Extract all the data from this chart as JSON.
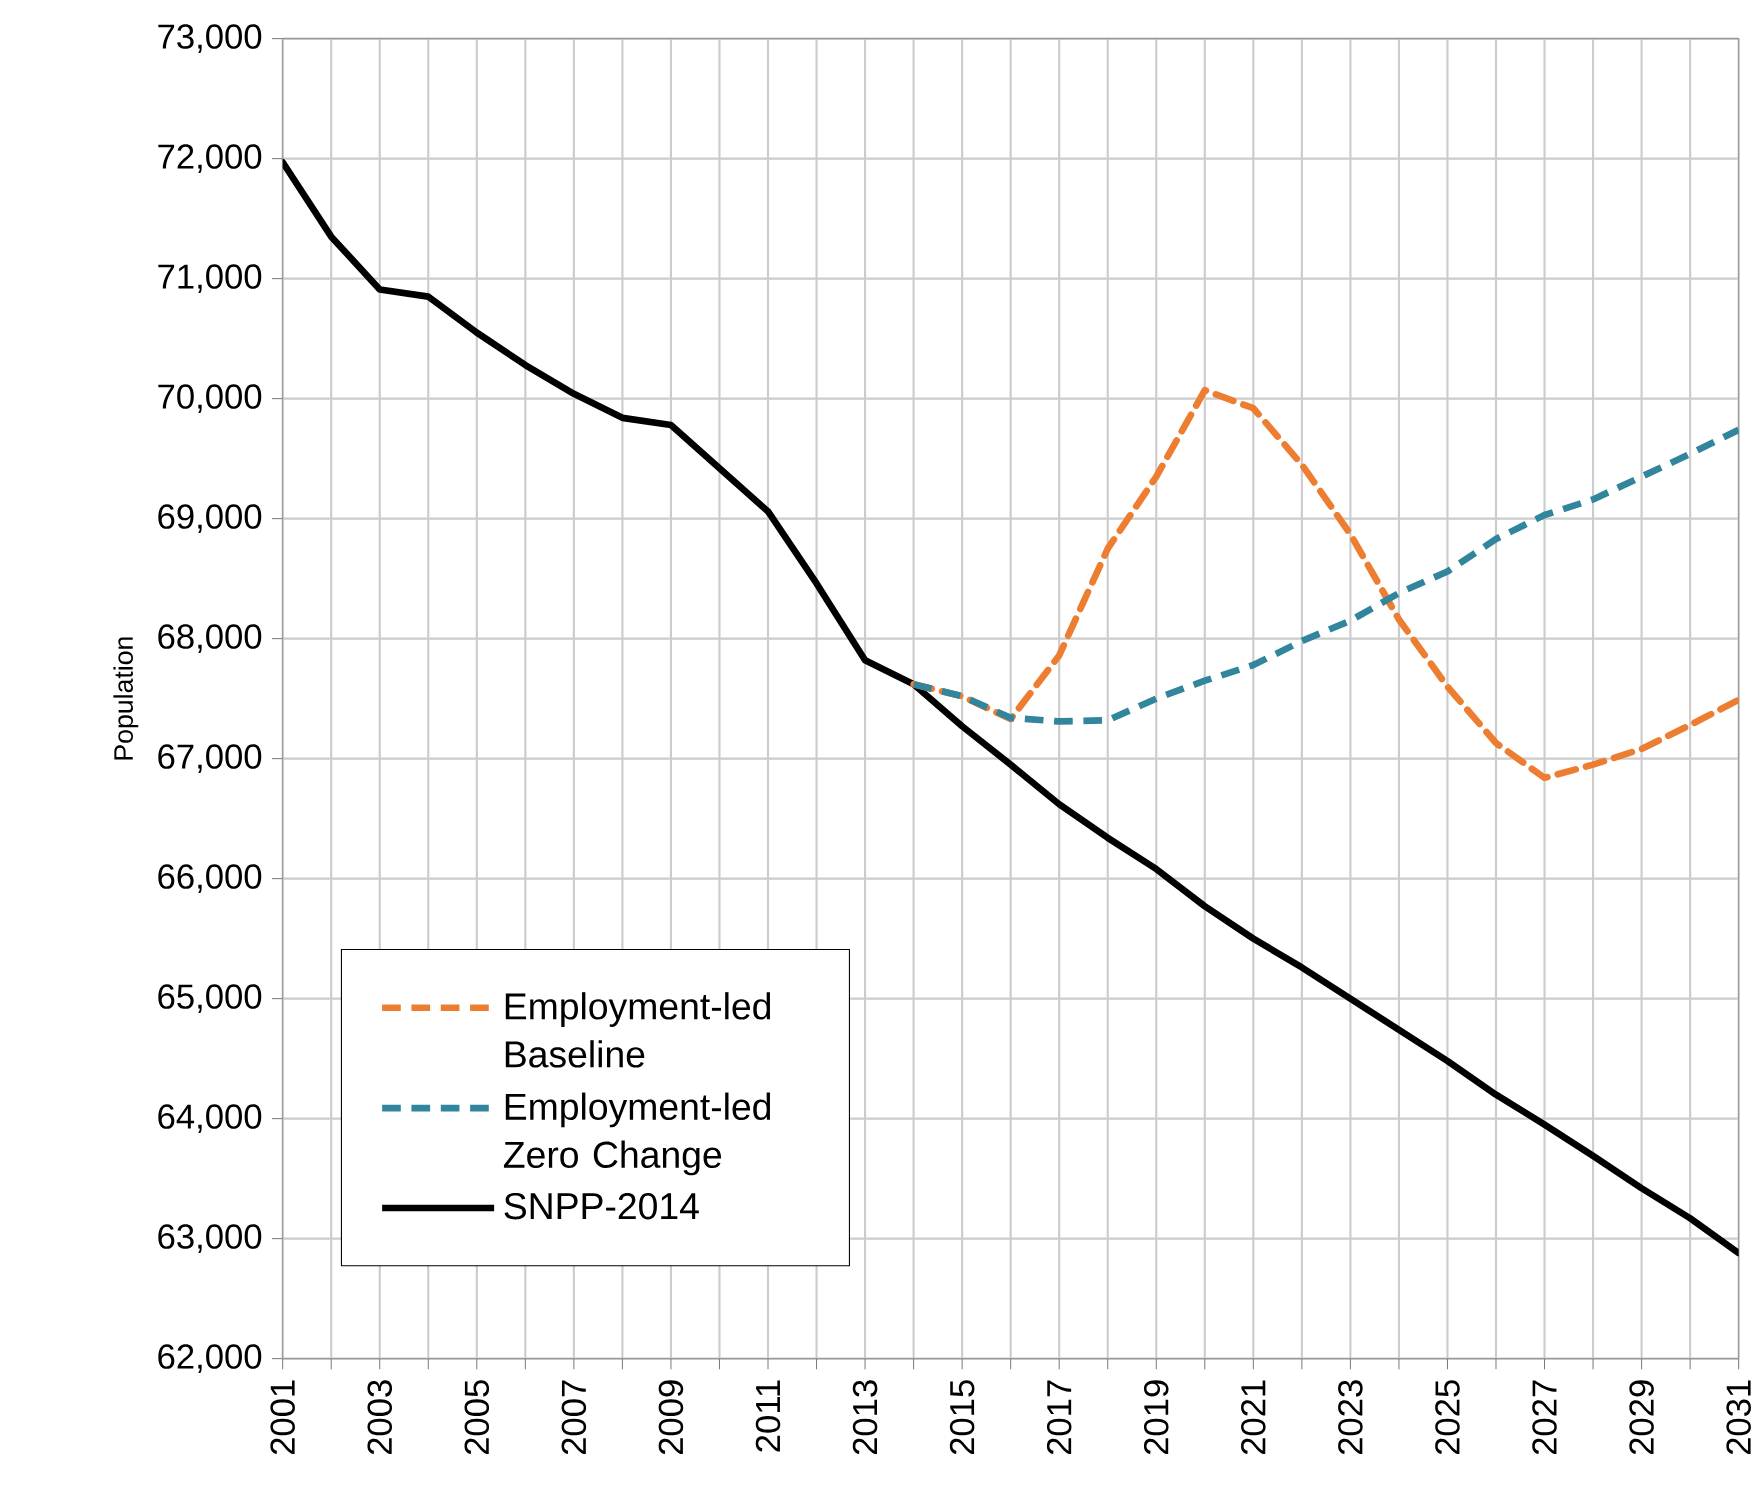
{
  "chart_data": {
    "type": "line",
    "ylabel": "Population",
    "x": [
      2001,
      2002,
      2003,
      2004,
      2005,
      2006,
      2007,
      2008,
      2009,
      2010,
      2011,
      2012,
      2013,
      2014,
      2015,
      2016,
      2017,
      2018,
      2019,
      2020,
      2021,
      2022,
      2023,
      2024,
      2025,
      2026,
      2027,
      2028,
      2029,
      2030,
      2031
    ],
    "series": [
      {
        "name": "Employment-led Baseline",
        "color": "#ed7d31",
        "line_style": "dashed",
        "values": [
          null,
          null,
          null,
          null,
          null,
          null,
          null,
          null,
          null,
          null,
          null,
          null,
          null,
          67620,
          67520,
          67330,
          67860,
          68750,
          69350,
          70070,
          69920,
          69450,
          68870,
          68160,
          67600,
          67130,
          66840,
          66950,
          67080,
          67280,
          67490
        ]
      },
      {
        "name": "Employment-led Zero Change",
        "color": "#31859c",
        "line_style": "dashed",
        "values": [
          null,
          null,
          null,
          null,
          null,
          null,
          null,
          null,
          null,
          null,
          null,
          null,
          null,
          67620,
          67520,
          67340,
          67310,
          67320,
          67500,
          67650,
          67780,
          67980,
          68150,
          68380,
          68560,
          68830,
          69030,
          69160,
          69350,
          69540,
          69740
        ]
      },
      {
        "name": "SNPP-2014",
        "color": "#000000",
        "line_style": "solid",
        "values": [
          71970,
          71350,
          70910,
          70850,
          70550,
          70280,
          70040,
          69840,
          69780,
          69420,
          69060,
          68460,
          67820,
          67620,
          67270,
          66950,
          66620,
          66340,
          66080,
          65770,
          65500,
          65260,
          65000,
          64740,
          64480,
          64200,
          63950,
          63690,
          63420,
          63170,
          62880
        ]
      }
    ],
    "xlim": [
      2001,
      2031
    ],
    "xticks": [
      2001,
      {
        "value": 2002,
        "label": null
      },
      2003,
      {
        "value": 2004,
        "label": null
      },
      2005,
      {
        "value": 2006,
        "label": null
      },
      2007,
      {
        "value": 2008,
        "label": null
      },
      2009,
      {
        "value": 2010,
        "label": null
      },
      2011,
      {
        "value": 2012,
        "label": null
      },
      2013,
      {
        "value": 2014,
        "label": null
      },
      2015,
      {
        "value": 2016,
        "label": null
      },
      2017,
      {
        "value": 2018,
        "label": null
      },
      2019,
      {
        "value": 2020,
        "label": null
      },
      2021,
      {
        "value": 2022,
        "label": null
      },
      2023,
      {
        "value": 2024,
        "label": null
      },
      2025,
      {
        "value": 2026,
        "label": null
      },
      2027,
      {
        "value": 2028,
        "label": null
      },
      2029,
      {
        "value": 2030,
        "label": null
      },
      2031
    ],
    "ylim": [
      62000,
      73000
    ],
    "yticks": [
      {
        "value": 62000,
        "label": "62,000"
      },
      {
        "value": 63000,
        "label": "63,000"
      },
      {
        "value": 64000,
        "label": "64,000"
      },
      {
        "value": 65000,
        "label": "65,000"
      },
      {
        "value": 66000,
        "label": "66,000"
      },
      {
        "value": 67000,
        "label": "67,000"
      },
      {
        "value": 68000,
        "label": "68,000"
      },
      {
        "value": 69000,
        "label": "69,000"
      },
      {
        "value": 70000,
        "label": "70,000"
      },
      {
        "value": 71000,
        "label": "71,000"
      },
      {
        "value": 72000,
        "label": "72,000"
      },
      {
        "value": 73000,
        "label": "73,000"
      }
    ],
    "grid": true,
    "legend": "bottom left",
    "marker": "none"
  }
}
